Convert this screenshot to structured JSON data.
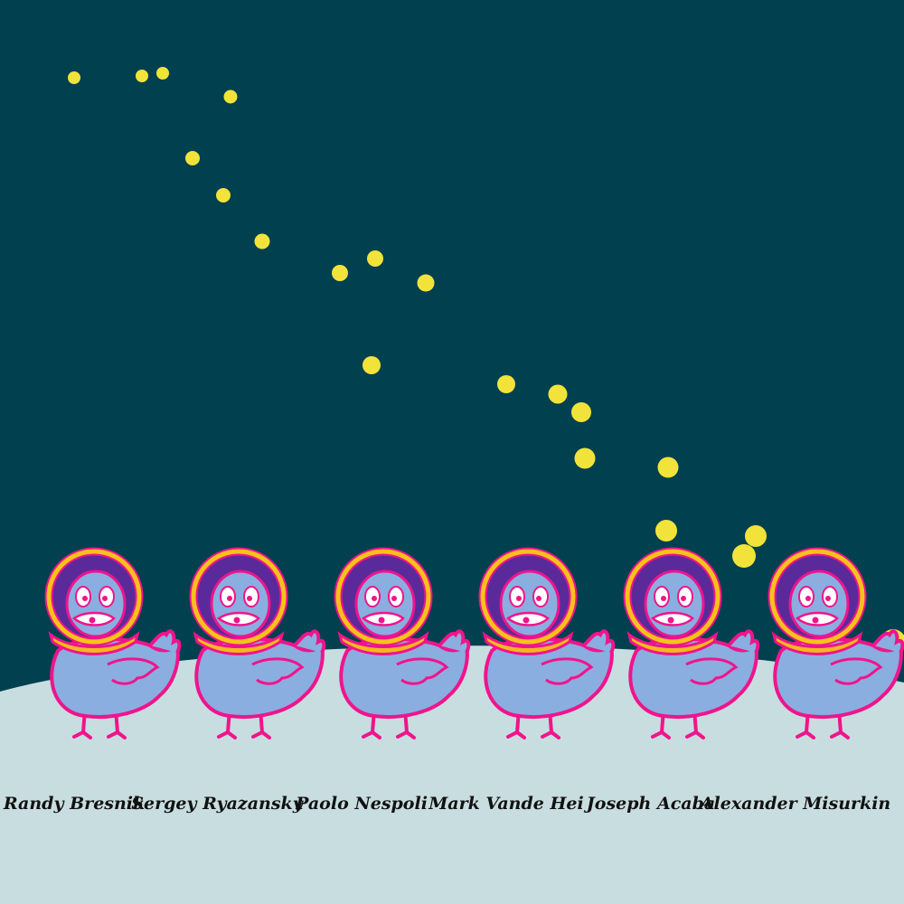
{
  "colors": {
    "sky": "#01404f",
    "ground": "#c8dde0",
    "stars": "#f2e33a",
    "body": "#8aaee0",
    "outline": "#f0148c",
    "helmet_ring": "#f7c21a",
    "visor": "#5a2a9a",
    "beak": "#f5b81e"
  },
  "astronauts": [
    {
      "name": "Randy Bresnik"
    },
    {
      "name": "Sergey Ryazansky"
    },
    {
      "name": "Paolo Nespoli"
    },
    {
      "name": "Mark Vande Hei"
    },
    {
      "name": "Joseph Acaba"
    },
    {
      "name": "Alexander Misurkin"
    }
  ]
}
